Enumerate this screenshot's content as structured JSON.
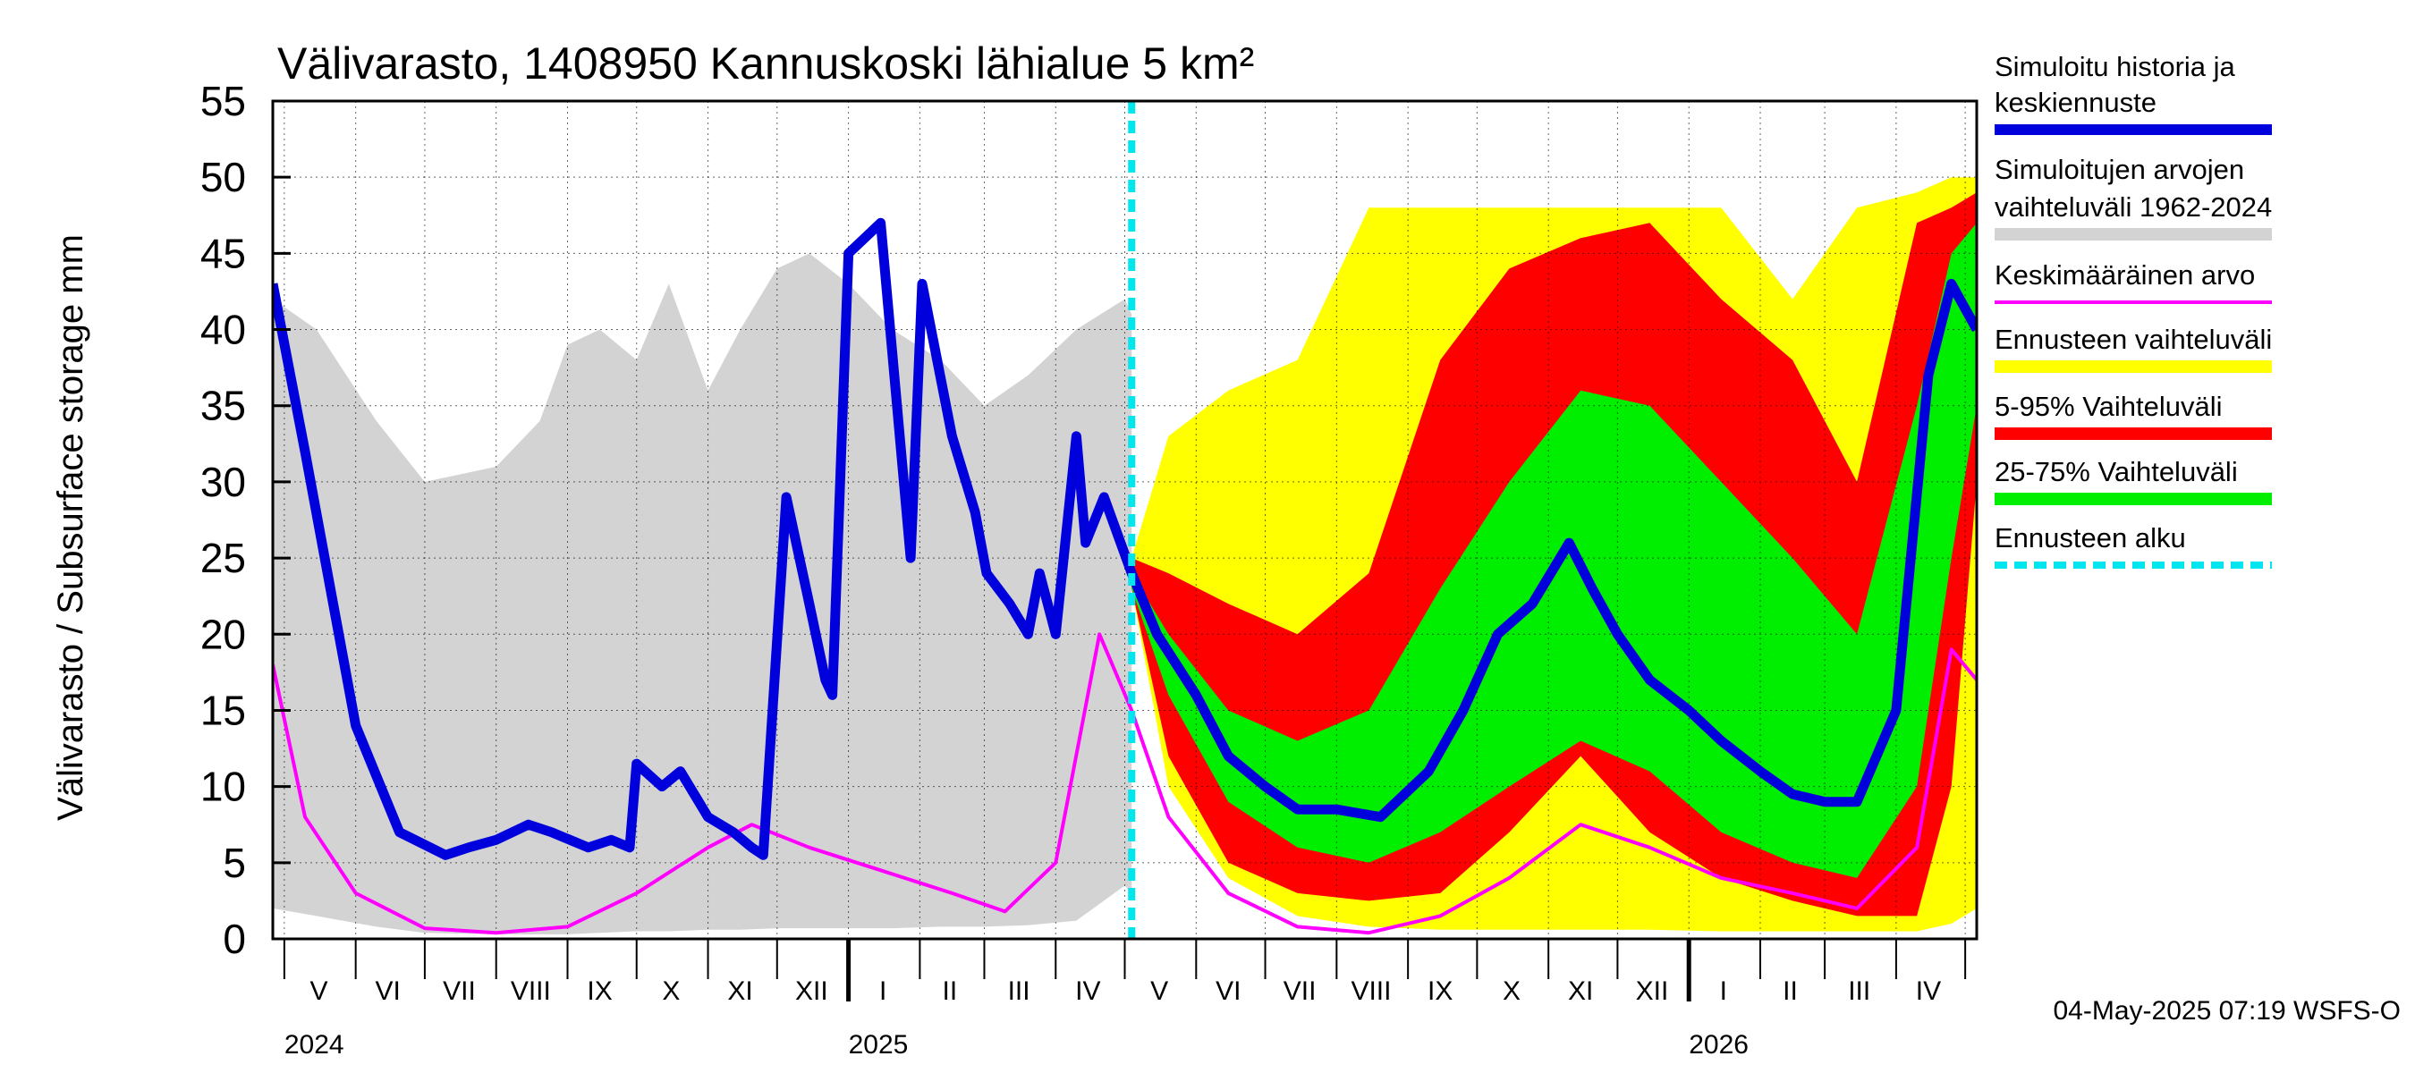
{
  "chart_data": {
    "type": "area",
    "title": "Välivarasto, 1408950 Kannuskoski lähialue 5 km²",
    "ylabel": "Välivarasto / Subsurface storage  mm",
    "ylim": [
      0,
      55
    ],
    "yticks": [
      "0",
      "5",
      "10",
      "15",
      "20",
      "25",
      "30",
      "35",
      "40",
      "45",
      "50",
      "55"
    ],
    "x_start": "2024-04-26",
    "x_end": "2026-05-06",
    "month_labels": [
      {
        "label": "V",
        "date": "2024-05-16"
      },
      {
        "label": "VI",
        "date": "2024-06-15"
      },
      {
        "label": "VII",
        "date": "2024-07-16"
      },
      {
        "label": "VIII",
        "date": "2024-08-16"
      },
      {
        "label": "IX",
        "date": "2024-09-15"
      },
      {
        "label": "X",
        "date": "2024-10-16"
      },
      {
        "label": "XI",
        "date": "2024-11-15"
      },
      {
        "label": "XII",
        "date": "2024-12-16"
      },
      {
        "label": "I",
        "date": "2025-01-16"
      },
      {
        "label": "II",
        "date": "2025-02-14"
      },
      {
        "label": "III",
        "date": "2025-03-16"
      },
      {
        "label": "IV",
        "date": "2025-04-15"
      },
      {
        "label": "V",
        "date": "2025-05-16"
      },
      {
        "label": "VI",
        "date": "2025-06-15"
      },
      {
        "label": "VII",
        "date": "2025-07-16"
      },
      {
        "label": "VIII",
        "date": "2025-08-16"
      },
      {
        "label": "IX",
        "date": "2025-09-15"
      },
      {
        "label": "X",
        "date": "2025-10-16"
      },
      {
        "label": "XI",
        "date": "2025-11-15"
      },
      {
        "label": "XII",
        "date": "2025-12-16"
      },
      {
        "label": "I",
        "date": "2026-01-16"
      },
      {
        "label": "II",
        "date": "2026-02-14"
      },
      {
        "label": "III",
        "date": "2026-03-16"
      },
      {
        "label": "IV",
        "date": "2026-04-15"
      }
    ],
    "month_bounds": [
      "2024-05-01",
      "2024-06-01",
      "2024-07-01",
      "2024-08-01",
      "2024-09-01",
      "2024-10-01",
      "2024-11-01",
      "2024-12-01",
      "2025-01-01",
      "2025-02-01",
      "2025-03-01",
      "2025-04-01",
      "2025-05-01",
      "2025-06-01",
      "2025-07-01",
      "2025-08-01",
      "2025-09-01",
      "2025-10-01",
      "2025-11-01",
      "2025-12-01",
      "2026-01-01",
      "2026-02-01",
      "2026-03-01",
      "2026-04-01",
      "2026-05-01"
    ],
    "year_labels": [
      {
        "label": "2024",
        "date": "2024-05-01"
      },
      {
        "label": "2025",
        "date": "2025-01-01"
      },
      {
        "label": "2026",
        "date": "2026-01-01"
      }
    ],
    "forecast_start": "2025-05-04",
    "series": [
      {
        "name": "Simuloitujen arvojen vaihteluväli 1962-2024",
        "kind": "band",
        "color": "#d3d3d3",
        "x": [
          "2024-04-26",
          "2024-05-15",
          "2024-06-10",
          "2024-07-01",
          "2024-08-01",
          "2024-08-20",
          "2024-09-01",
          "2024-09-15",
          "2024-10-01",
          "2024-10-15",
          "2024-11-01",
          "2024-11-15",
          "2024-12-01",
          "2024-12-15",
          "2025-01-01",
          "2025-01-20",
          "2025-02-10",
          "2025-03-01",
          "2025-03-20",
          "2025-04-10",
          "2025-05-01",
          "2025-05-04"
        ],
        "lower": [
          2,
          1.5,
          0.8,
          0.4,
          0.3,
          0.3,
          0.3,
          0.4,
          0.5,
          0.5,
          0.6,
          0.6,
          0.7,
          0.7,
          0.7,
          0.7,
          0.8,
          0.8,
          0.9,
          1.2,
          3.5,
          3
        ],
        "upper": [
          42,
          40,
          34,
          30,
          31,
          34,
          39,
          40,
          38,
          43,
          36,
          40,
          44,
          45,
          43,
          40,
          38,
          35,
          37,
          40,
          42,
          41
        ]
      },
      {
        "name": "Ennusteen vaihteluväli",
        "kind": "band",
        "color": "#ffff00",
        "x": [
          "2025-05-04",
          "2025-05-20",
          "2025-06-15",
          "2025-07-15",
          "2025-08-15",
          "2025-09-15",
          "2025-10-15",
          "2025-11-15",
          "2025-12-15",
          "2026-01-15",
          "2026-02-15",
          "2026-03-15",
          "2026-04-10",
          "2026-04-25",
          "2026-05-06"
        ],
        "lower": [
          23,
          10,
          4,
          1.5,
          0.8,
          0.6,
          0.6,
          0.6,
          0.6,
          0.5,
          0.5,
          0.5,
          0.5,
          1,
          2
        ],
        "upper": [
          25,
          33,
          36,
          38,
          48,
          48,
          48,
          48,
          48,
          48,
          42,
          48,
          49,
          50,
          50
        ]
      },
      {
        "name": "5-95% Vaihteluväli",
        "kind": "band",
        "color": "#ff0000",
        "x": [
          "2025-05-04",
          "2025-05-20",
          "2025-06-15",
          "2025-07-15",
          "2025-08-15",
          "2025-09-15",
          "2025-10-15",
          "2025-11-15",
          "2025-12-15",
          "2026-01-15",
          "2026-02-15",
          "2026-03-15",
          "2026-04-10",
          "2026-04-25",
          "2026-05-06"
        ],
        "lower": [
          23,
          12,
          5,
          3,
          2.5,
          3,
          7,
          12,
          7,
          4,
          2.5,
          1.5,
          1.5,
          10,
          30
        ],
        "upper": [
          25,
          24,
          22,
          20,
          24,
          38,
          44,
          46,
          47,
          42,
          38,
          30,
          47,
          48,
          49
        ]
      },
      {
        "name": "25-75% Vaihteluväli",
        "kind": "band",
        "color": "#00ee00",
        "x": [
          "2025-05-04",
          "2025-05-20",
          "2025-06-15",
          "2025-07-15",
          "2025-08-15",
          "2025-09-15",
          "2025-10-15",
          "2025-11-15",
          "2025-12-15",
          "2026-01-15",
          "2026-02-15",
          "2026-03-15",
          "2026-04-10",
          "2026-04-25",
          "2026-05-06"
        ],
        "lower": [
          23,
          16,
          9,
          6,
          5,
          7,
          10,
          13,
          11,
          7,
          5,
          4,
          10,
          25,
          35
        ],
        "upper": [
          24,
          20,
          15,
          13,
          15,
          23,
          30,
          36,
          35,
          30,
          25,
          20,
          35,
          45,
          47
        ]
      },
      {
        "name": "Keskimääräinen arvo",
        "kind": "line",
        "color": "#ff00ff",
        "x": [
          "2024-04-26",
          "2024-05-10",
          "2024-06-01",
          "2024-07-01",
          "2024-08-01",
          "2024-09-01",
          "2024-10-01",
          "2024-11-01",
          "2024-11-20",
          "2024-12-15",
          "2025-01-15",
          "2025-02-15",
          "2025-03-10",
          "2025-04-01",
          "2025-04-20",
          "2025-05-04",
          "2025-05-20",
          "2025-06-15",
          "2025-07-15",
          "2025-08-15",
          "2025-09-15",
          "2025-10-15",
          "2025-11-15",
          "2025-12-15",
          "2026-01-15",
          "2026-02-15",
          "2026-03-15",
          "2026-04-10",
          "2026-04-25",
          "2026-05-06"
        ],
        "values": [
          18,
          8,
          3,
          0.7,
          0.4,
          0.8,
          3,
          6,
          7.5,
          6,
          4.5,
          3,
          1.8,
          5,
          20,
          15,
          8,
          3,
          0.8,
          0.4,
          1.5,
          4,
          7.5,
          6,
          4,
          3,
          2,
          6,
          19,
          17
        ]
      },
      {
        "name": "Simuloitu historia ja keskiennuste",
        "kind": "line",
        "color": "#0000dd",
        "x": [
          "2024-04-26",
          "2024-05-10",
          "2024-06-01",
          "2024-06-20",
          "2024-07-10",
          "2024-07-20",
          "2024-08-01",
          "2024-08-15",
          "2024-08-25",
          "2024-09-10",
          "2024-09-20",
          "2024-09-28",
          "2024-10-01",
          "2024-10-12",
          "2024-10-20",
          "2024-11-01",
          "2024-11-12",
          "2024-11-20",
          "2024-11-25",
          "2024-12-05",
          "2024-12-15",
          "2024-12-22",
          "2024-12-25",
          "2025-01-01",
          "2025-01-15",
          "2025-01-28",
          "2025-02-02",
          "2025-02-15",
          "2025-02-25",
          "2025-03-02",
          "2025-03-12",
          "2025-03-20",
          "2025-03-25",
          "2025-04-01",
          "2025-04-10",
          "2025-04-14",
          "2025-04-22",
          "2025-05-04",
          "2025-05-15",
          "2025-06-01",
          "2025-06-15",
          "2025-07-01",
          "2025-07-15",
          "2025-08-01",
          "2025-08-20",
          "2025-09-10",
          "2025-09-25",
          "2025-10-10",
          "2025-10-25",
          "2025-11-10",
          "2025-11-20",
          "2025-12-01",
          "2025-12-15",
          "2026-01-01",
          "2026-01-15",
          "2026-02-01",
          "2026-02-15",
          "2026-03-01",
          "2026-03-15",
          "2026-04-01",
          "2026-04-15",
          "2026-04-25",
          "2026-05-06"
        ],
        "values": [
          43,
          32,
          14,
          7,
          5.5,
          6,
          6.5,
          7.5,
          7,
          6,
          6.5,
          6,
          11.5,
          10,
          11,
          8,
          7,
          6,
          5.5,
          29,
          22,
          17,
          16,
          45,
          47,
          25,
          43,
          33,
          28,
          24,
          22,
          20,
          24,
          20,
          33,
          26,
          29,
          24,
          20,
          16,
          12,
          10,
          8.5,
          8.5,
          8,
          11,
          15,
          20,
          22,
          26,
          23,
          20,
          17,
          15,
          13,
          11,
          9.5,
          9,
          9,
          15,
          37,
          43,
          40
        ]
      }
    ]
  },
  "legend": {
    "items": [
      {
        "line1": "Simuloitu historia ja",
        "line2": "keskiennuste",
        "color": "#0000dd",
        "style": "thick"
      },
      {
        "line1": "Simuloitujen arvojen",
        "line2": "vaihteluväli 1962-2024",
        "color": "#d3d3d3",
        "style": "band"
      },
      {
        "line1": "Keskimääräinen arvo",
        "line2": "",
        "color": "#ff00ff",
        "style": "thin"
      },
      {
        "line1": "Ennusteen vaihteluväli",
        "line2": "",
        "color": "#ffff00",
        "style": "band"
      },
      {
        "line1": "5-95% Vaihteluväli",
        "line2": "",
        "color": "#ff0000",
        "style": "band"
      },
      {
        "line1": "25-75% Vaihteluväli",
        "line2": "",
        "color": "#00ee00",
        "style": "band"
      },
      {
        "line1": "Ennusteen alku",
        "line2": "",
        "color": "#00e5ee",
        "style": "dashed"
      }
    ]
  },
  "footer": {
    "timestamp": "04-May-2025 07:19 WSFS-O"
  }
}
